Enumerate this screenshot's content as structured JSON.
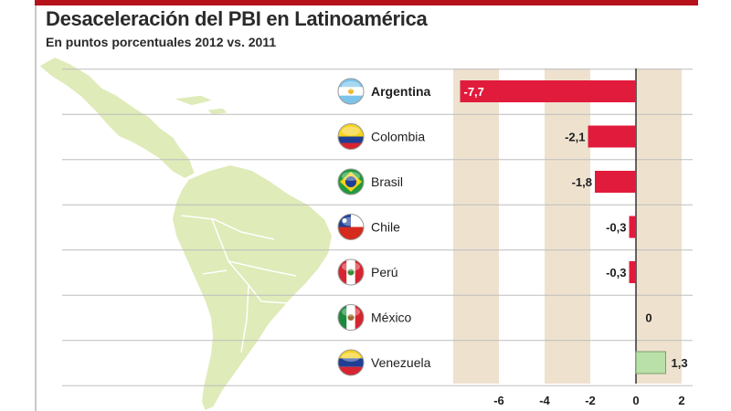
{
  "header": {
    "title": "Desaceleración del PBI en Latinoamérica",
    "subtitle": "En puntos porcentuales 2012 vs. 2011"
  },
  "colors": {
    "negative_bar": "#e11b3c",
    "positive_bar": "#b9e0a8",
    "grid_band": "#eee2cf",
    "map_fill": "#dfebb8",
    "map_stroke": "#ffffff",
    "accent": "#b5121b"
  },
  "chart_data": {
    "type": "bar",
    "orientation": "horizontal",
    "title": "Desaceleración del PBI en Latinoamérica",
    "subtitle": "En puntos porcentuales 2012 vs. 2011",
    "categories": [
      "Argentina",
      "Colombia",
      "Brasil",
      "Chile",
      "Perú",
      "México",
      "Venezuela"
    ],
    "values": [
      -7.7,
      -2.1,
      -1.8,
      -0.3,
      -0.3,
      0,
      1.3
    ],
    "value_labels": [
      "-7,7",
      "-2,1",
      "-1,8",
      "-0,3",
      "-0,3",
      "0",
      "1,3"
    ],
    "highlighted": "Argentina",
    "xlim": [
      -8,
      2
    ],
    "xticks": [
      -6,
      -4,
      -2,
      0,
      2
    ],
    "xtick_labels": [
      "-6",
      "-4",
      "-2",
      "0",
      "2"
    ],
    "flags": [
      "argentina-flag-icon",
      "colombia-flag-icon",
      "brazil-flag-icon",
      "chile-flag-icon",
      "peru-flag-icon",
      "mexico-flag-icon",
      "venezuela-flag-icon"
    ]
  }
}
